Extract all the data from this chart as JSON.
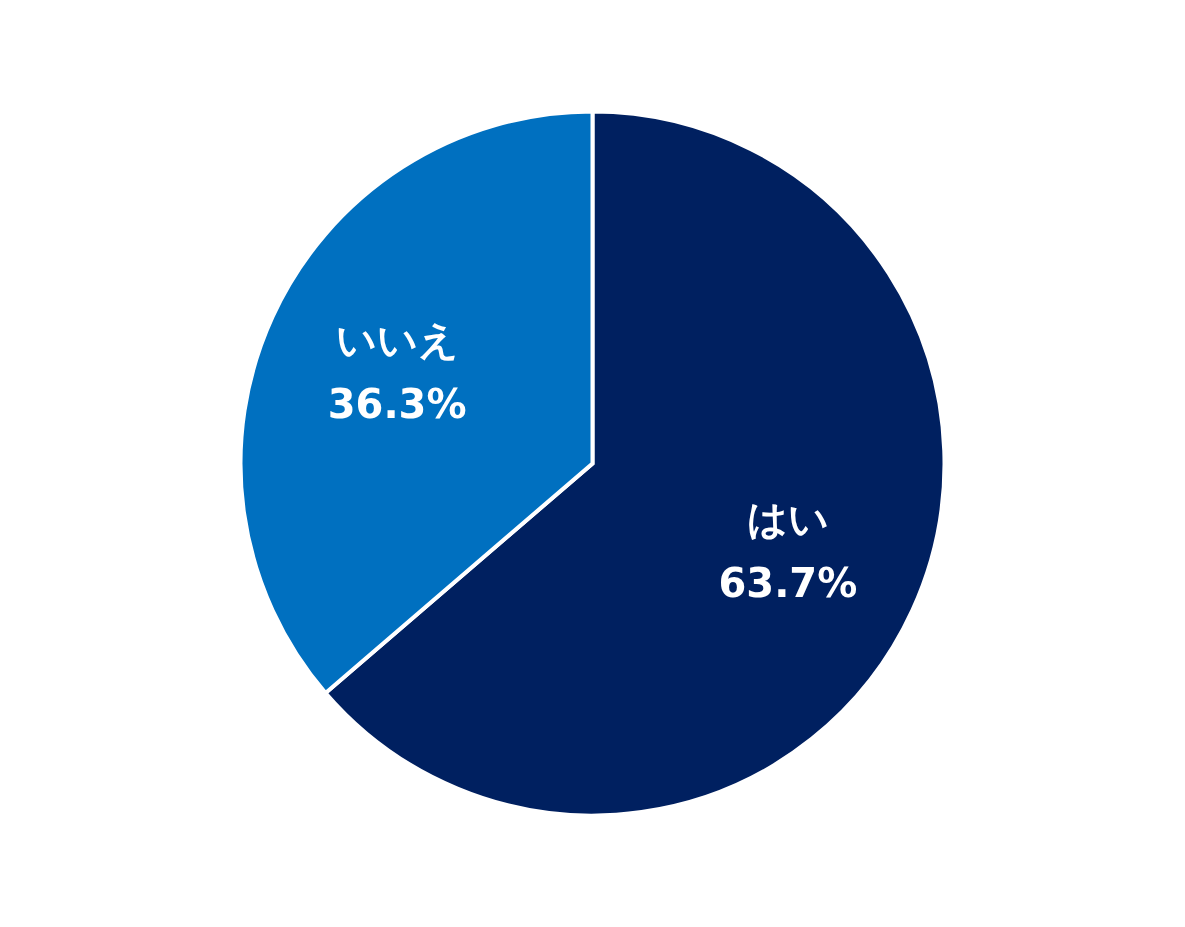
{
  "chart_data": {
    "type": "pie",
    "categories": [
      "はい",
      "いいえ"
    ],
    "values": [
      63.7,
      36.3
    ],
    "colors": [
      "#002060",
      "#0070c0"
    ],
    "value_labels": [
      "63.7%",
      "36.3%"
    ]
  }
}
